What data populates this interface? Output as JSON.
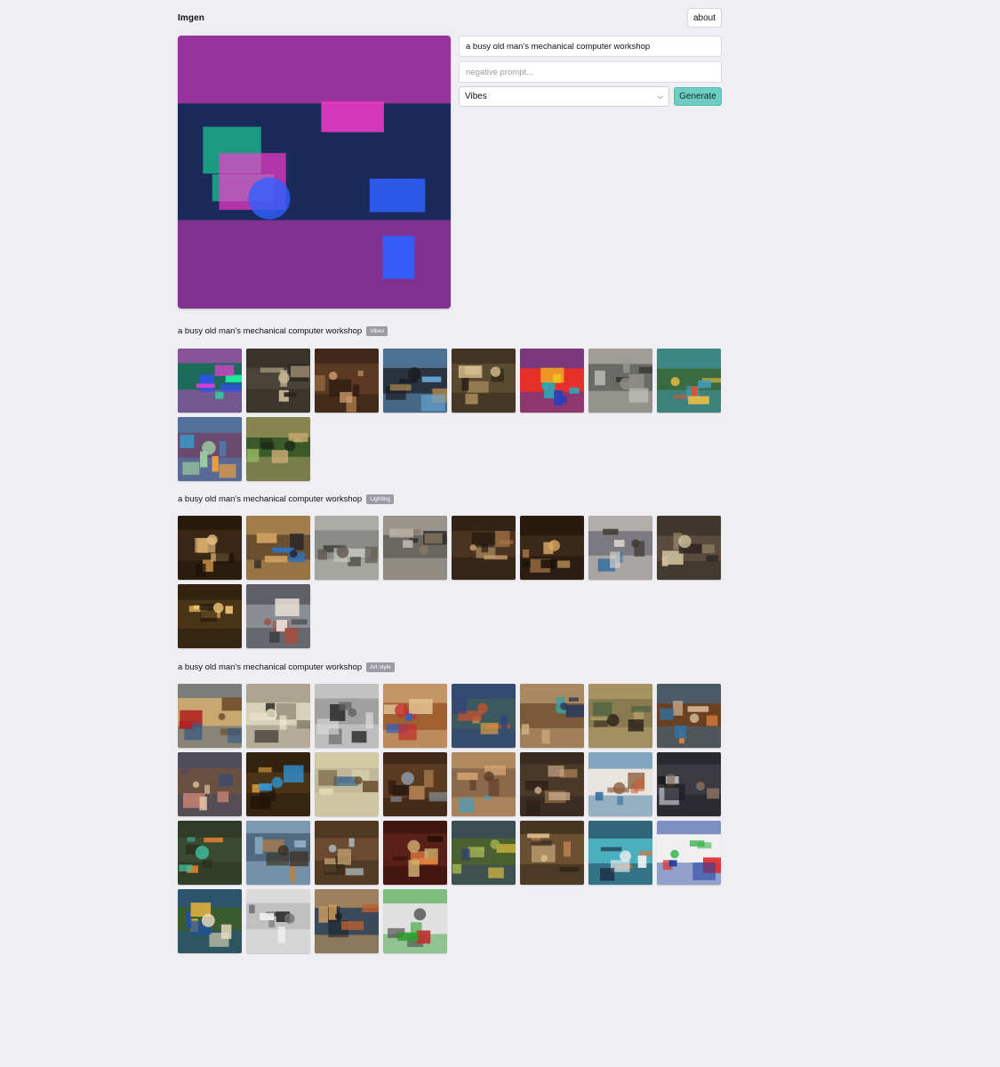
{
  "app": {
    "title": "Imgen",
    "about_label": "about"
  },
  "form": {
    "prompt_value": "a busy old man's mechanical computer workshop",
    "negative_placeholder": "negative prompt...",
    "style_selected": "Vibes",
    "generate_label": "Generate"
  },
  "sections": [
    {
      "caption": "a busy old man's mechanical computer workshop",
      "badge": "Vibes",
      "thumbs": [
        {
          "bg": "#1c6b5a",
          "a": "#1ef0a0",
          "b": "#e040d0",
          "c": "#3050f0"
        },
        {
          "bg": "#4a4338",
          "a": "#9a8a70",
          "b": "#2a2620",
          "c": "#c8b898"
        },
        {
          "bg": "#5a3a22",
          "a": "#a87848",
          "b": "#2a1a10",
          "c": "#d0a070"
        },
        {
          "bg": "#2a3440",
          "a": "#b08a50",
          "b": "#68a8d8",
          "c": "#1a1a20"
        },
        {
          "bg": "#5a4a30",
          "a": "#a88c5a",
          "b": "#2c2418",
          "c": "#d8c090"
        },
        {
          "bg": "#e8302a",
          "a": "#f0d020",
          "b": "#2040c0",
          "c": "#20b0c0"
        },
        {
          "bg": "#6a6a66",
          "a": "#2a2a28",
          "b": "#c8c8c0",
          "c": "#909088"
        },
        {
          "bg": "#3a6a40",
          "a": "#e05030",
          "b": "#40a0c0",
          "c": "#f0c040"
        },
        {
          "bg": "#6a4a70",
          "a": "#f0a040",
          "b": "#4090c0",
          "c": "#a0d0a0"
        },
        {
          "bg": "#3a5a2a",
          "a": "#90b060",
          "b": "#c8a870",
          "c": "#1a2a14"
        }
      ]
    },
    {
      "caption": "a busy old man's mechanical computer workshop",
      "badge": "Lighting",
      "thumbs": [
        {
          "bg": "#3a2614",
          "a": "#c08a40",
          "b": "#1a120a",
          "c": "#e8c080"
        },
        {
          "bg": "#6a5030",
          "a": "#3070c0",
          "b": "#d0a060",
          "c": "#202028"
        },
        {
          "bg": "#8a8a86",
          "a": "#3a3a38",
          "b": "#c8c8c2",
          "c": "#605a50"
        },
        {
          "bg": "#6a6660",
          "a": "#2a2826",
          "b": "#c0bab0",
          "c": "#8a7a60"
        },
        {
          "bg": "#4a3420",
          "a": "#a87848",
          "b": "#20160e",
          "c": "#c8a070"
        },
        {
          "bg": "#3a2818",
          "a": "#b08050",
          "b": "#1a1008",
          "c": "#d8a868"
        },
        {
          "bg": "#7a7a80",
          "a": "#3a70a0",
          "b": "#e0d8d0",
          "c": "#403a34"
        },
        {
          "bg": "#5a4c3c",
          "a": "#a09070",
          "b": "#2a2420",
          "c": "#d0c0a0"
        },
        {
          "bg": "#4a3418",
          "a": "#d0a050",
          "b": "#20160a",
          "c": "#f0c878"
        },
        {
          "bg": "#8a8e94",
          "a": "#e8e0d8",
          "b": "#3a3a40",
          "c": "#a05040"
        }
      ]
    },
    {
      "caption": "a busy old man's mechanical computer workshop",
      "badge": "Art style",
      "thumbs": [
        {
          "bg": "#c8a870",
          "a": "#b02020",
          "b": "#3a5a80",
          "c": "#6a4a2a"
        },
        {
          "bg": "#d8d0b8",
          "a": "#2a2620",
          "b": "#8a8070",
          "c": "#f0e8d0"
        },
        {
          "bg": "#a0a0a0",
          "a": "#202020",
          "b": "#e0e0e0",
          "c": "#606060"
        },
        {
          "bg": "#a06030",
          "a": "#3060c0",
          "b": "#e0c090",
          "c": "#c03030"
        },
        {
          "bg": "#3a5a60",
          "a": "#e0a040",
          "b": "#304080",
          "c": "#c05030"
        },
        {
          "bg": "#7a5a3a",
          "a": "#40a0a0",
          "b": "#d0b080",
          "c": "#2a3a5a"
        },
        {
          "bg": "#8a7a50",
          "a": "#3a5a3a",
          "b": "#c0a870",
          "c": "#2a2218"
        },
        {
          "bg": "#6a4020",
          "a": "#e08040",
          "b": "#3070a0",
          "c": "#d8c0a0"
        },
        {
          "bg": "#6a5040",
          "a": "#c08070",
          "b": "#3a4a70",
          "c": "#e0c0a0"
        },
        {
          "bg": "#4a3418",
          "a": "#e0a040",
          "b": "#201408",
          "c": "#3090d0"
        },
        {
          "bg": "#c0b898",
          "a": "#4a7090",
          "b": "#e0d8b0",
          "c": "#6a5030"
        },
        {
          "bg": "#5a3a20",
          "a": "#b08050",
          "b": "#2a1a10",
          "c": "#90a0b0"
        },
        {
          "bg": "#8a6a4a",
          "a": "#40a0c0",
          "b": "#d0a070",
          "c": "#5a3a2a"
        },
        {
          "bg": "#4a3828",
          "a": "#a07850",
          "b": "#2a2018",
          "c": "#d0b090"
        },
        {
          "bg": "#e8e4e0",
          "a": "#d06030",
          "b": "#3070a0",
          "c": "#8a6040"
        },
        {
          "bg": "#3a3a40",
          "a": "#c0c0c8",
          "b": "#1a1a20",
          "c": "#8a7060"
        },
        {
          "bg": "#3a4a30",
          "a": "#e08030",
          "b": "#2a3020",
          "c": "#40c0a0"
        },
        {
          "bg": "#506a80",
          "a": "#c08040",
          "b": "#a0c0d8",
          "c": "#3a3020"
        },
        {
          "bg": "#6a4a30",
          "a": "#c0a070",
          "b": "#3a2a1a",
          "c": "#b0c0c8"
        },
        {
          "bg": "#5a2018",
          "a": "#e08040",
          "b": "#2a1008",
          "c": "#d0b070"
        },
        {
          "bg": "#4a6030",
          "a": "#e0c040",
          "b": "#304070",
          "c": "#a0b050"
        },
        {
          "bg": "#6a5030",
          "a": "#c08050",
          "b": "#2a2018",
          "c": "#e0c090"
        },
        {
          "bg": "#4ab0c0",
          "a": "#e07030",
          "b": "#1a2a40",
          "c": "#f0f0f0"
        },
        {
          "bg": "#f0f0f0",
          "a": "#e03030",
          "b": "#2040a0",
          "c": "#30b040"
        },
        {
          "bg": "#3a5a30",
          "a": "#e0b040",
          "b": "#2050a0",
          "c": "#f0e0c0"
        },
        {
          "bg": "#c0c0c0",
          "a": "#202020",
          "b": "#f0f0f0",
          "c": "#707070"
        },
        {
          "bg": "#3a4a5a",
          "a": "#c06030",
          "b": "#f0b060",
          "c": "#1a2028"
        },
        {
          "bg": "#e0e0e0",
          "a": "#c03030",
          "b": "#30a030",
          "c": "#505050"
        }
      ]
    }
  ],
  "hero": {
    "bg": "#1a2a5a",
    "a": "#1ef0a0",
    "b": "#ff3ad0",
    "c": "#3060ff"
  }
}
